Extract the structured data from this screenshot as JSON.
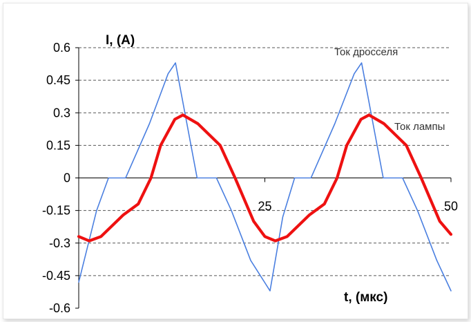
{
  "chart_data": {
    "type": "line",
    "title": "",
    "ylabel": "I, (A)",
    "xlabel": "t, (мкс)",
    "xlim": [
      0,
      50
    ],
    "ylim": [
      -0.6,
      0.6
    ],
    "y_ticks": [
      "0.6",
      "0.45",
      "0.3",
      "0.15",
      "0",
      "-0.15",
      "-0.3",
      "-0.45",
      "-0.6"
    ],
    "x_ticks": [
      "25",
      "50"
    ],
    "grid": "horizontal dashed",
    "series": [
      {
        "name": "Ток дросселя",
        "color": "#4a7fe0",
        "x": [
          0,
          2.4,
          4.0,
          6.3,
          9.5,
          12.0,
          13.0,
          15.9,
          18.5,
          20.5,
          23.1,
          25.7,
          27.4,
          29.0,
          31.2,
          34.4,
          37.0,
          38.0,
          40.9,
          43.5,
          45.5,
          48.1,
          50.0
        ],
        "values": [
          -0.48,
          -0.15,
          0.0,
          0.0,
          0.25,
          0.48,
          0.53,
          0.0,
          0.0,
          -0.15,
          -0.38,
          -0.52,
          -0.18,
          0.0,
          0.0,
          0.25,
          0.48,
          0.53,
          0.0,
          0.0,
          -0.15,
          -0.38,
          -0.52
        ]
      },
      {
        "name": "Ток лампы",
        "color": "#ee1111",
        "x": [
          0,
          1.4,
          3.0,
          6.0,
          8.0,
          9.7,
          11.0,
          12.9,
          14.0,
          16.0,
          19.0,
          21.0,
          23.5,
          25.0,
          26.4,
          28.0,
          31.0,
          33.0,
          34.7,
          36.0,
          37.9,
          39.0,
          41.0,
          44.0,
          46.0,
          48.5,
          50.0
        ],
        "values": [
          -0.27,
          -0.29,
          -0.27,
          -0.17,
          -0.12,
          0.0,
          0.15,
          0.27,
          0.29,
          0.25,
          0.15,
          0.0,
          -0.2,
          -0.27,
          -0.29,
          -0.27,
          -0.17,
          -0.12,
          0.0,
          0.15,
          0.27,
          0.29,
          0.25,
          0.15,
          0.0,
          -0.2,
          -0.26
        ]
      }
    ],
    "legend_labels": [
      {
        "text": "Ток дросселя",
        "placement": "top-right"
      },
      {
        "text": "Ток лампы",
        "placement": "right"
      }
    ]
  }
}
